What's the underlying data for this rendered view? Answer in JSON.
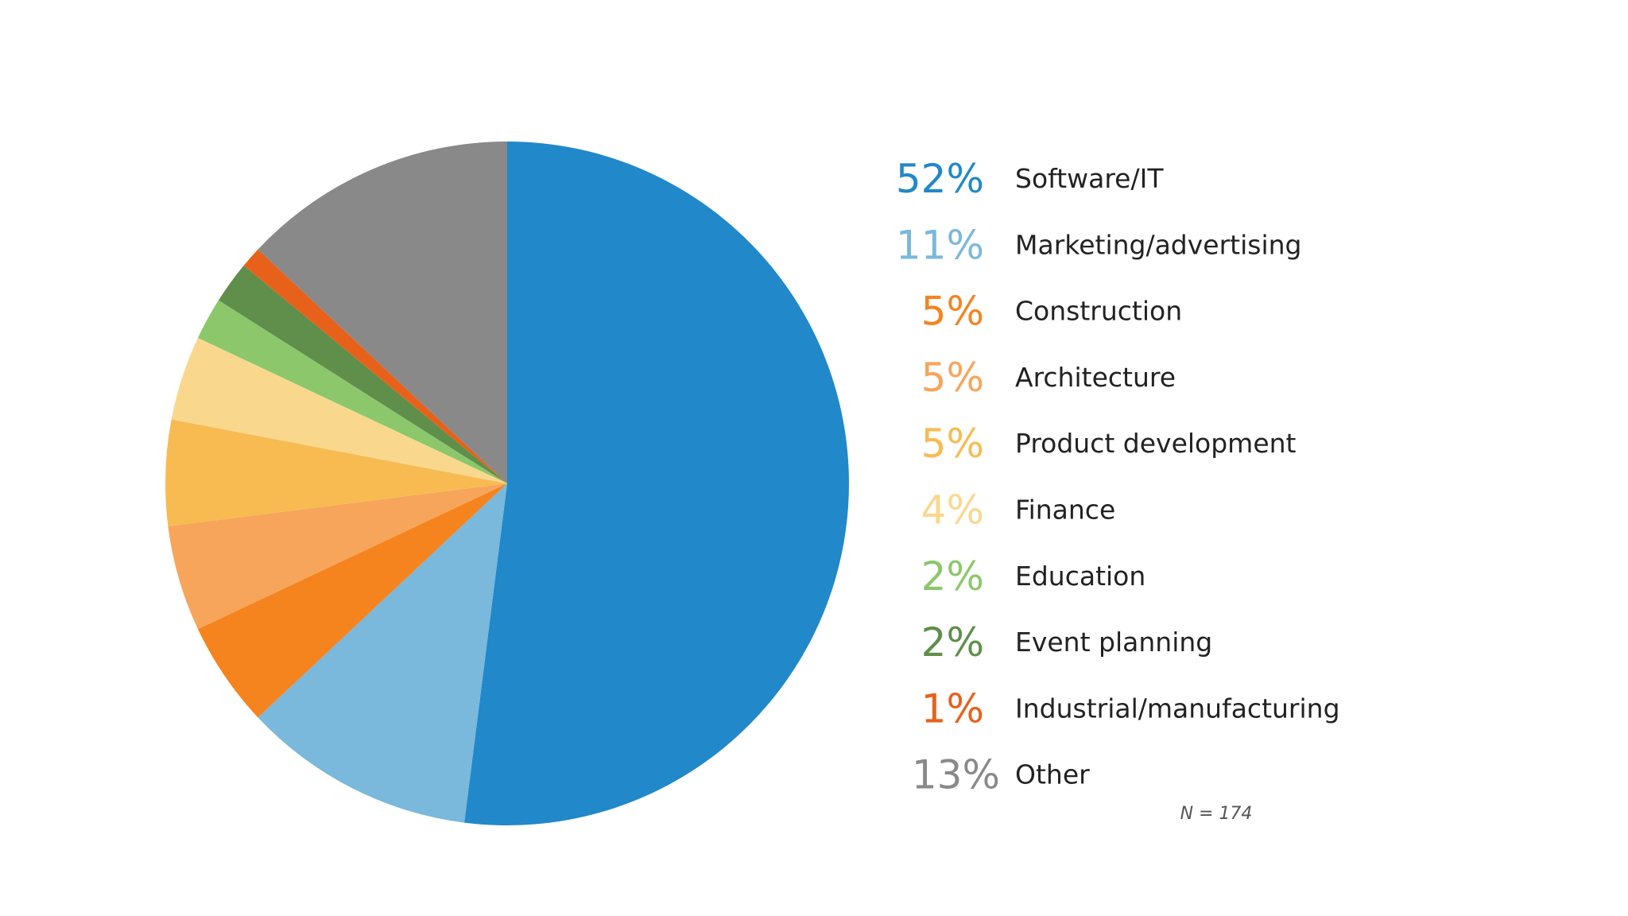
{
  "chart_data": {
    "type": "pie",
    "title": "",
    "slices": [
      {
        "label": "Software/IT",
        "value": 52,
        "pct_label": "52%",
        "color": "#2188c9"
      },
      {
        "label": "Marketing/advertising",
        "value": 11,
        "pct_label": "11%",
        "color": "#7ab8dc"
      },
      {
        "label": "Construction",
        "value": 5,
        "pct_label": "5%",
        "color": "#f5841f"
      },
      {
        "label": "Architecture",
        "value": 5,
        "pct_label": "5%",
        "color": "#f7a55a"
      },
      {
        "label": "Product development",
        "value": 5,
        "pct_label": "5%",
        "color": "#f8bb52"
      },
      {
        "label": "Finance",
        "value": 4,
        "pct_label": "4%",
        "color": "#f9d88e"
      },
      {
        "label": "Education",
        "value": 2,
        "pct_label": "2%",
        "color": "#8cc76b"
      },
      {
        "label": "Event planning",
        "value": 2,
        "pct_label": "2%",
        "color": "#5f8f4a"
      },
      {
        "label": "Industrial/manufacturing",
        "value": 1,
        "pct_label": "1%",
        "color": "#e8611a"
      },
      {
        "label": "Other",
        "value": 13,
        "pct_label": "13%",
        "color": "#898989"
      }
    ],
    "legend_position": "right",
    "start_angle": "12 o'clock",
    "direction": "clockwise"
  },
  "note": "N = 174"
}
